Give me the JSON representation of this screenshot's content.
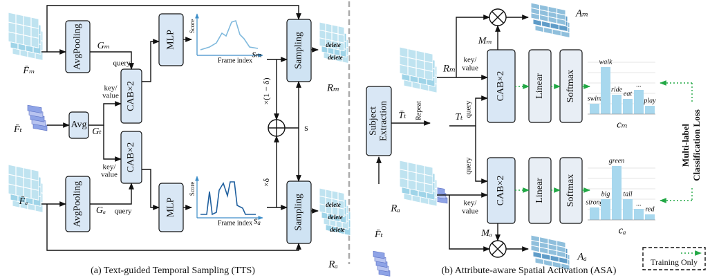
{
  "panel_a": {
    "caption": "(a) Text-guided Temporal Sampling (TTS)",
    "avgpooling": [
      "AvgPooling",
      "AvgPooling"
    ],
    "avg": "Avg",
    "cab": [
      "CAB×2",
      "CAB×2"
    ],
    "mlp": [
      "MLP",
      "MLP"
    ],
    "sampling": [
      "Sampling",
      "Sampling"
    ],
    "symbols": {
      "f_m": "F̄ₘ",
      "f_t": "F̄ₜ",
      "f_a": "F̄ₐ",
      "g_m": "Gₘ",
      "g_t": "Gₜ",
      "g_a": "Gₐ",
      "s_m": "sₘ",
      "s_a": "sₐ",
      "s": "s",
      "r_m": "Rₘ",
      "r_a": "Rₐ"
    },
    "query": [
      "query",
      "query"
    ],
    "key_value": [
      [
        "key/",
        "value"
      ],
      [
        "key/",
        "value"
      ]
    ],
    "weights": [
      "×(1 − δ)",
      "×δ"
    ],
    "plots": [
      {
        "y_label": "Score",
        "x_label": "Frame index"
      },
      {
        "y_label": "Score",
        "x_label": "Frame index"
      }
    ],
    "delete": [
      "delete",
      "delete",
      "delete",
      "delete",
      "delete"
    ]
  },
  "panel_b": {
    "caption": "(b) Attribute-aware Spatial Activation (ASA)",
    "subject_extraction": [
      "Subject",
      "Extraction"
    ],
    "repeat": "Repeat",
    "symbols": {
      "t_bar": "T̄ₜ",
      "t": "Tₜ",
      "f_t": "F̄ₜ",
      "r_m": "Rₘ",
      "r_a": "Rₐ",
      "m_m": "Mₘ",
      "m_a": "Mₐ",
      "a_m": "Aₘ",
      "a_a": "Aₐ"
    },
    "key_value": [
      [
        "key/",
        "value"
      ],
      [
        "key/",
        "value"
      ]
    ],
    "query": [
      "query",
      "query"
    ],
    "cab": [
      "CAB×2",
      "CAB×2"
    ],
    "linear": [
      "Linear",
      "Linear"
    ],
    "softmax": [
      "Softmax",
      "Softmax"
    ],
    "charts": [
      {
        "labels": [
          "swim",
          "walk",
          "ride",
          "eat",
          "...",
          "play"
        ],
        "name": "cₘ"
      },
      {
        "labels": [
          "strong",
          "big",
          "green",
          "tall",
          "...",
          "red"
        ],
        "name": "cₐ"
      }
    ],
    "loss": [
      "Multi-label",
      "Classification Loss"
    ],
    "legend": "Training Only"
  }
}
